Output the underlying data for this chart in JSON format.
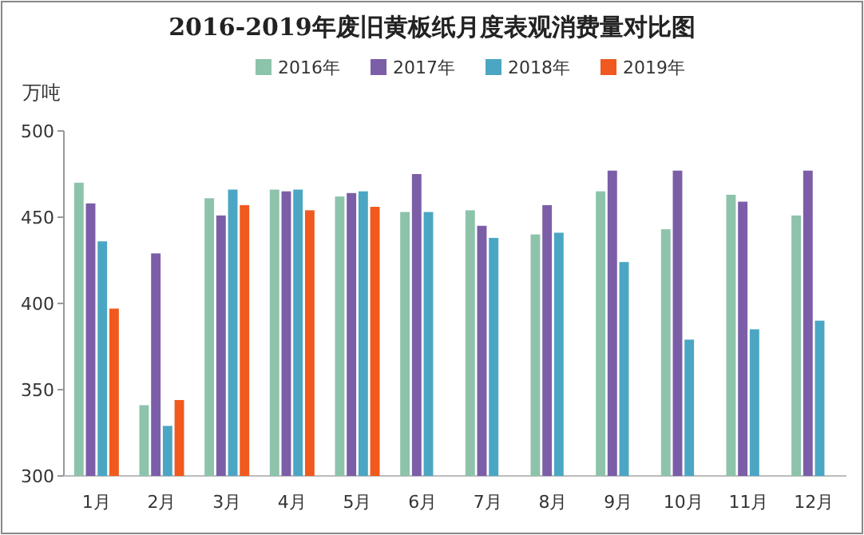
{
  "chart_data": {
    "type": "bar",
    "title": "2016-2019年废旧黄板纸月度表观消费量对比图",
    "ylabel": "万吨",
    "categories": [
      "1月",
      "2月",
      "3月",
      "4月",
      "5月",
      "6月",
      "7月",
      "8月",
      "9月",
      "10月",
      "11月",
      "12月"
    ],
    "series": [
      {
        "name": "2016年",
        "color": "#8dc3ab",
        "values": [
          470,
          341,
          461,
          466,
          462,
          453,
          454,
          440,
          465,
          443,
          463,
          451
        ]
      },
      {
        "name": "2017年",
        "color": "#7b5ea7",
        "values": [
          458,
          429,
          451,
          465,
          464,
          475,
          445,
          457,
          477,
          477,
          459,
          477
        ]
      },
      {
        "name": "2018年",
        "color": "#4ba6c4",
        "values": [
          436,
          329,
          466,
          466,
          465,
          453,
          438,
          441,
          424,
          379,
          385,
          390
        ]
      },
      {
        "name": "2019年",
        "color": "#f05a1e",
        "values": [
          397,
          344,
          457,
          454,
          456,
          null,
          null,
          null,
          null,
          null,
          null,
          null
        ]
      }
    ],
    "ylim": [
      300,
      500
    ],
    "yticks": [
      300,
      350,
      400,
      450,
      500
    ],
    "grid": false,
    "legend": "top"
  }
}
